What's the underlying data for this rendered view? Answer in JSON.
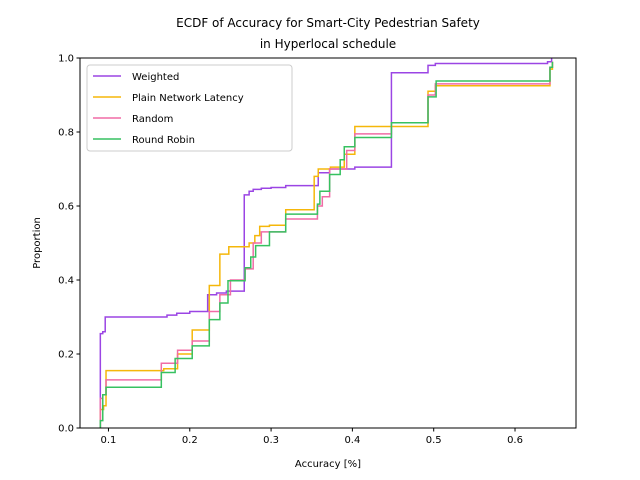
{
  "chart_data": {
    "type": "line",
    "subtype": "ecdf-step",
    "title": "ECDF of Accuracy for Smart-City Pedestrian Safety",
    "subtitle": "in Hyperlocal schedule",
    "xlabel": "Accuracy [%]",
    "ylabel": "Proportion",
    "xlim": [
      0.065,
      0.675
    ],
    "ylim": [
      0.0,
      1.0
    ],
    "xticks": [
      "0.1",
      "0.2",
      "0.3",
      "0.4",
      "0.5",
      "0.6"
    ],
    "xtick_values": [
      0.1,
      0.2,
      0.3,
      0.4,
      0.5,
      0.6
    ],
    "yticks": [
      "0.0",
      "0.2",
      "0.4",
      "0.6",
      "0.8",
      "1.0"
    ],
    "ytick_values": [
      0.0,
      0.2,
      0.4,
      0.6,
      0.8,
      1.0
    ],
    "grid": false,
    "legend_position": "top-left",
    "series": [
      {
        "name": "Weighted",
        "color": "#9b45e4",
        "points": [
          [
            0.09,
            0.0
          ],
          [
            0.09,
            0.255
          ],
          [
            0.093,
            0.26
          ],
          [
            0.096,
            0.3
          ],
          [
            0.172,
            0.305
          ],
          [
            0.184,
            0.31
          ],
          [
            0.2,
            0.315
          ],
          [
            0.222,
            0.36
          ],
          [
            0.233,
            0.365
          ],
          [
            0.245,
            0.37
          ],
          [
            0.267,
            0.63
          ],
          [
            0.273,
            0.64
          ],
          [
            0.278,
            0.645
          ],
          [
            0.288,
            0.648
          ],
          [
            0.3,
            0.65
          ],
          [
            0.318,
            0.655
          ],
          [
            0.358,
            0.69
          ],
          [
            0.372,
            0.7
          ],
          [
            0.385,
            0.7
          ],
          [
            0.403,
            0.705
          ],
          [
            0.448,
            0.96
          ],
          [
            0.493,
            0.98
          ],
          [
            0.502,
            0.985
          ],
          [
            0.64,
            0.99
          ],
          [
            0.645,
            1.0
          ]
        ]
      },
      {
        "name": "Plain Network Latency",
        "color": "#f5b70a",
        "points": [
          [
            0.09,
            0.0
          ],
          [
            0.09,
            0.05
          ],
          [
            0.094,
            0.06
          ],
          [
            0.097,
            0.155
          ],
          [
            0.168,
            0.16
          ],
          [
            0.185,
            0.2
          ],
          [
            0.203,
            0.265
          ],
          [
            0.224,
            0.385
          ],
          [
            0.237,
            0.47
          ],
          [
            0.248,
            0.49
          ],
          [
            0.273,
            0.5
          ],
          [
            0.28,
            0.52
          ],
          [
            0.286,
            0.545
          ],
          [
            0.298,
            0.548
          ],
          [
            0.318,
            0.59
          ],
          [
            0.353,
            0.68
          ],
          [
            0.358,
            0.7
          ],
          [
            0.373,
            0.705
          ],
          [
            0.39,
            0.74
          ],
          [
            0.403,
            0.815
          ],
          [
            0.448,
            0.815
          ],
          [
            0.493,
            0.91
          ],
          [
            0.502,
            0.925
          ],
          [
            0.643,
            0.97
          ],
          [
            0.646,
            0.99
          ]
        ]
      },
      {
        "name": "Random",
        "color": "#f06ca6",
        "points": [
          [
            0.09,
            0.0
          ],
          [
            0.09,
            0.08
          ],
          [
            0.093,
            0.09
          ],
          [
            0.097,
            0.13
          ],
          [
            0.165,
            0.175
          ],
          [
            0.185,
            0.21
          ],
          [
            0.203,
            0.235
          ],
          [
            0.224,
            0.315
          ],
          [
            0.237,
            0.36
          ],
          [
            0.25,
            0.4
          ],
          [
            0.268,
            0.43
          ],
          [
            0.278,
            0.5
          ],
          [
            0.288,
            0.53
          ],
          [
            0.318,
            0.565
          ],
          [
            0.357,
            0.6
          ],
          [
            0.363,
            0.625
          ],
          [
            0.372,
            0.7
          ],
          [
            0.388,
            0.7
          ],
          [
            0.393,
            0.75
          ],
          [
            0.403,
            0.795
          ],
          [
            0.448,
            0.825
          ],
          [
            0.493,
            0.9
          ],
          [
            0.502,
            0.93
          ],
          [
            0.643,
            0.975
          ],
          [
            0.646,
            0.99
          ]
        ]
      },
      {
        "name": "Round Robin",
        "color": "#37c160",
        "points": [
          [
            0.09,
            0.0
          ],
          [
            0.09,
            0.02
          ],
          [
            0.093,
            0.09
          ],
          [
            0.097,
            0.11
          ],
          [
            0.165,
            0.15
          ],
          [
            0.182,
            0.188
          ],
          [
            0.203,
            0.222
          ],
          [
            0.224,
            0.293
          ],
          [
            0.237,
            0.338
          ],
          [
            0.247,
            0.398
          ],
          [
            0.268,
            0.433
          ],
          [
            0.275,
            0.462
          ],
          [
            0.281,
            0.493
          ],
          [
            0.298,
            0.53
          ],
          [
            0.318,
            0.578
          ],
          [
            0.357,
            0.605
          ],
          [
            0.36,
            0.64
          ],
          [
            0.372,
            0.685
          ],
          [
            0.385,
            0.725
          ],
          [
            0.39,
            0.76
          ],
          [
            0.403,
            0.785
          ],
          [
            0.448,
            0.825
          ],
          [
            0.493,
            0.895
          ],
          [
            0.503,
            0.938
          ],
          [
            0.643,
            0.975
          ],
          [
            0.646,
            0.99
          ]
        ]
      }
    ]
  }
}
